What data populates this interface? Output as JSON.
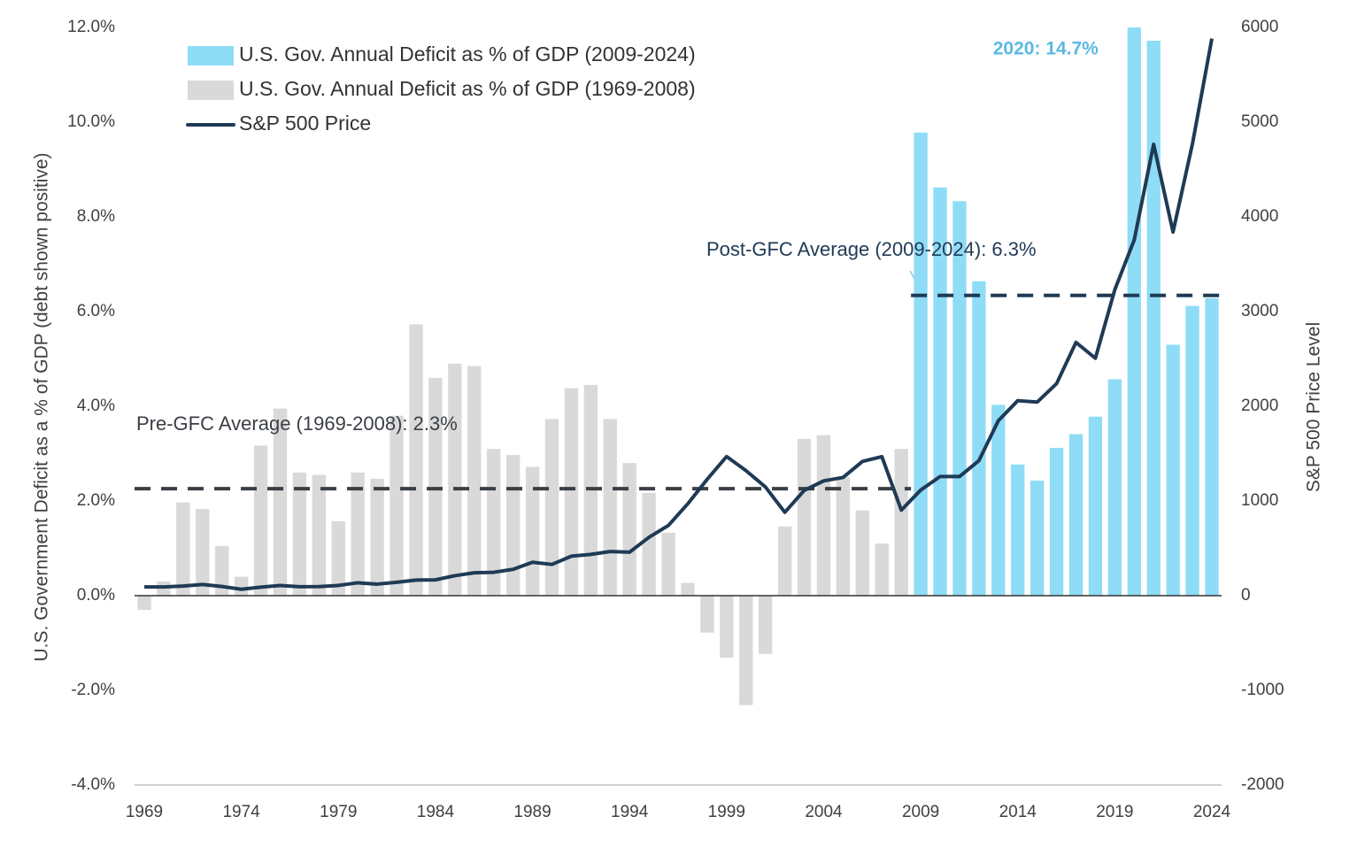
{
  "chart_data": {
    "type": "bar",
    "ylabel": "U.S. Government Deficit as a % of GDP (debt shown positive)",
    "y2label": "S&P 500 Price Level",
    "ylim": [
      -4,
      12
    ],
    "yticks": [
      {
        "value": -4,
        "label": "-4.0%"
      },
      {
        "value": -2,
        "label": "-2.0%"
      },
      {
        "value": 0,
        "label": "0.0%"
      },
      {
        "value": 2,
        "label": "2.0%"
      },
      {
        "value": 4,
        "label": "4.0%"
      },
      {
        "value": 6,
        "label": "6.0%"
      },
      {
        "value": 8,
        "label": "8.0%"
      },
      {
        "value": 10,
        "label": "10.0%"
      },
      {
        "value": 12,
        "label": "12.0%"
      }
    ],
    "y2lim": [
      -2000,
      6000
    ],
    "y2ticks": [
      -2000,
      -1000,
      0,
      1000,
      2000,
      3000,
      4000,
      5000,
      6000
    ],
    "xlim": [
      1969,
      2024
    ],
    "xticks": [
      1969,
      1974,
      1979,
      1984,
      1989,
      1994,
      1999,
      2004,
      2009,
      2014,
      2019,
      2024
    ],
    "legend": "upper left",
    "series": [
      {
        "name": "U.S. Gov. Annual Deficit as % of GDP (2009-2024)",
        "type": "bar",
        "color": "#8fdcf7",
        "x": [
          2009,
          2010,
          2011,
          2012,
          2013,
          2014,
          2015,
          2016,
          2017,
          2018,
          2019,
          2020,
          2021,
          2022,
          2023,
          2024
        ],
        "values": [
          9.78,
          8.62,
          8.33,
          6.64,
          4.03,
          2.77,
          2.43,
          3.12,
          3.41,
          3.78,
          4.57,
          14.7,
          11.72,
          5.3,
          6.12,
          6.28
        ],
        "value_labels": [
          null,
          null,
          null,
          null,
          null,
          null,
          null,
          null,
          null,
          null,
          null,
          "2020: 14.7%",
          null,
          null,
          null,
          null
        ]
      },
      {
        "name": "U.S. Gov. Annual Deficit as % of GDP (1969-2008)",
        "type": "bar",
        "color": "#d9d9d9",
        "x": [
          1969,
          1970,
          1971,
          1972,
          1973,
          1974,
          1975,
          1976,
          1977,
          1978,
          1979,
          1980,
          1981,
          1982,
          1983,
          1984,
          1985,
          1986,
          1987,
          1988,
          1989,
          1990,
          1991,
          1992,
          1993,
          1994,
          1995,
          1996,
          1997,
          1998,
          1999,
          2000,
          2001,
          2002,
          2003,
          2004,
          2005,
          2006,
          2007,
          2008
        ],
        "values": [
          -0.3,
          0.3,
          1.97,
          1.83,
          1.05,
          0.4,
          3.17,
          3.95,
          2.6,
          2.55,
          1.57,
          2.6,
          2.47,
          3.8,
          5.73,
          4.6,
          4.9,
          4.85,
          3.1,
          2.97,
          2.72,
          3.73,
          4.38,
          4.45,
          3.73,
          2.8,
          2.17,
          1.33,
          0.27,
          -0.78,
          -1.31,
          -2.31,
          -1.23,
          1.46,
          3.31,
          3.39,
          2.5,
          1.8,
          1.1,
          3.1
        ]
      },
      {
        "name": "S&P 500 Price",
        "type": "line",
        "axis": "y2",
        "color": "#1f3a55",
        "x": [
          1969,
          1970,
          1971,
          1972,
          1973,
          1974,
          1975,
          1976,
          1977,
          1978,
          1979,
          1980,
          1981,
          1982,
          1983,
          1984,
          1985,
          1986,
          1987,
          1988,
          1989,
          1990,
          1991,
          1992,
          1993,
          1994,
          1995,
          1996,
          1997,
          1998,
          1999,
          2000,
          2001,
          2002,
          2003,
          2004,
          2005,
          2006,
          2007,
          2008,
          2009,
          2010,
          2011,
          2012,
          2013,
          2014,
          2015,
          2016,
          2017,
          2018,
          2019,
          2020,
          2021,
          2022,
          2023,
          2024
        ],
        "values": [
          92,
          92,
          102,
          118,
          97,
          68,
          90,
          107,
          95,
          96,
          108,
          136,
          122,
          141,
          165,
          167,
          211,
          242,
          247,
          278,
          353,
          330,
          417,
          436,
          466,
          459,
          616,
          741,
          970,
          1229,
          1469,
          1320,
          1148,
          880,
          1112,
          1212,
          1248,
          1418,
          1468,
          903,
          1115,
          1258,
          1258,
          1426,
          1848,
          2059,
          2044,
          2239,
          2674,
          2507,
          3231,
          3756,
          4766,
          3840,
          4770,
          5882
        ]
      }
    ],
    "reference_lines": [
      {
        "label": "Pre-GFC Average (1969-2008): 2.3%",
        "value": 2.26,
        "x": [
          1969,
          2008
        ],
        "color": "#3a3f45"
      },
      {
        "label": "Post-GFC Average (2009-2024): 6.3%",
        "value": 6.34,
        "x": [
          2009,
          2024
        ],
        "color": "#1f3a55"
      }
    ]
  }
}
